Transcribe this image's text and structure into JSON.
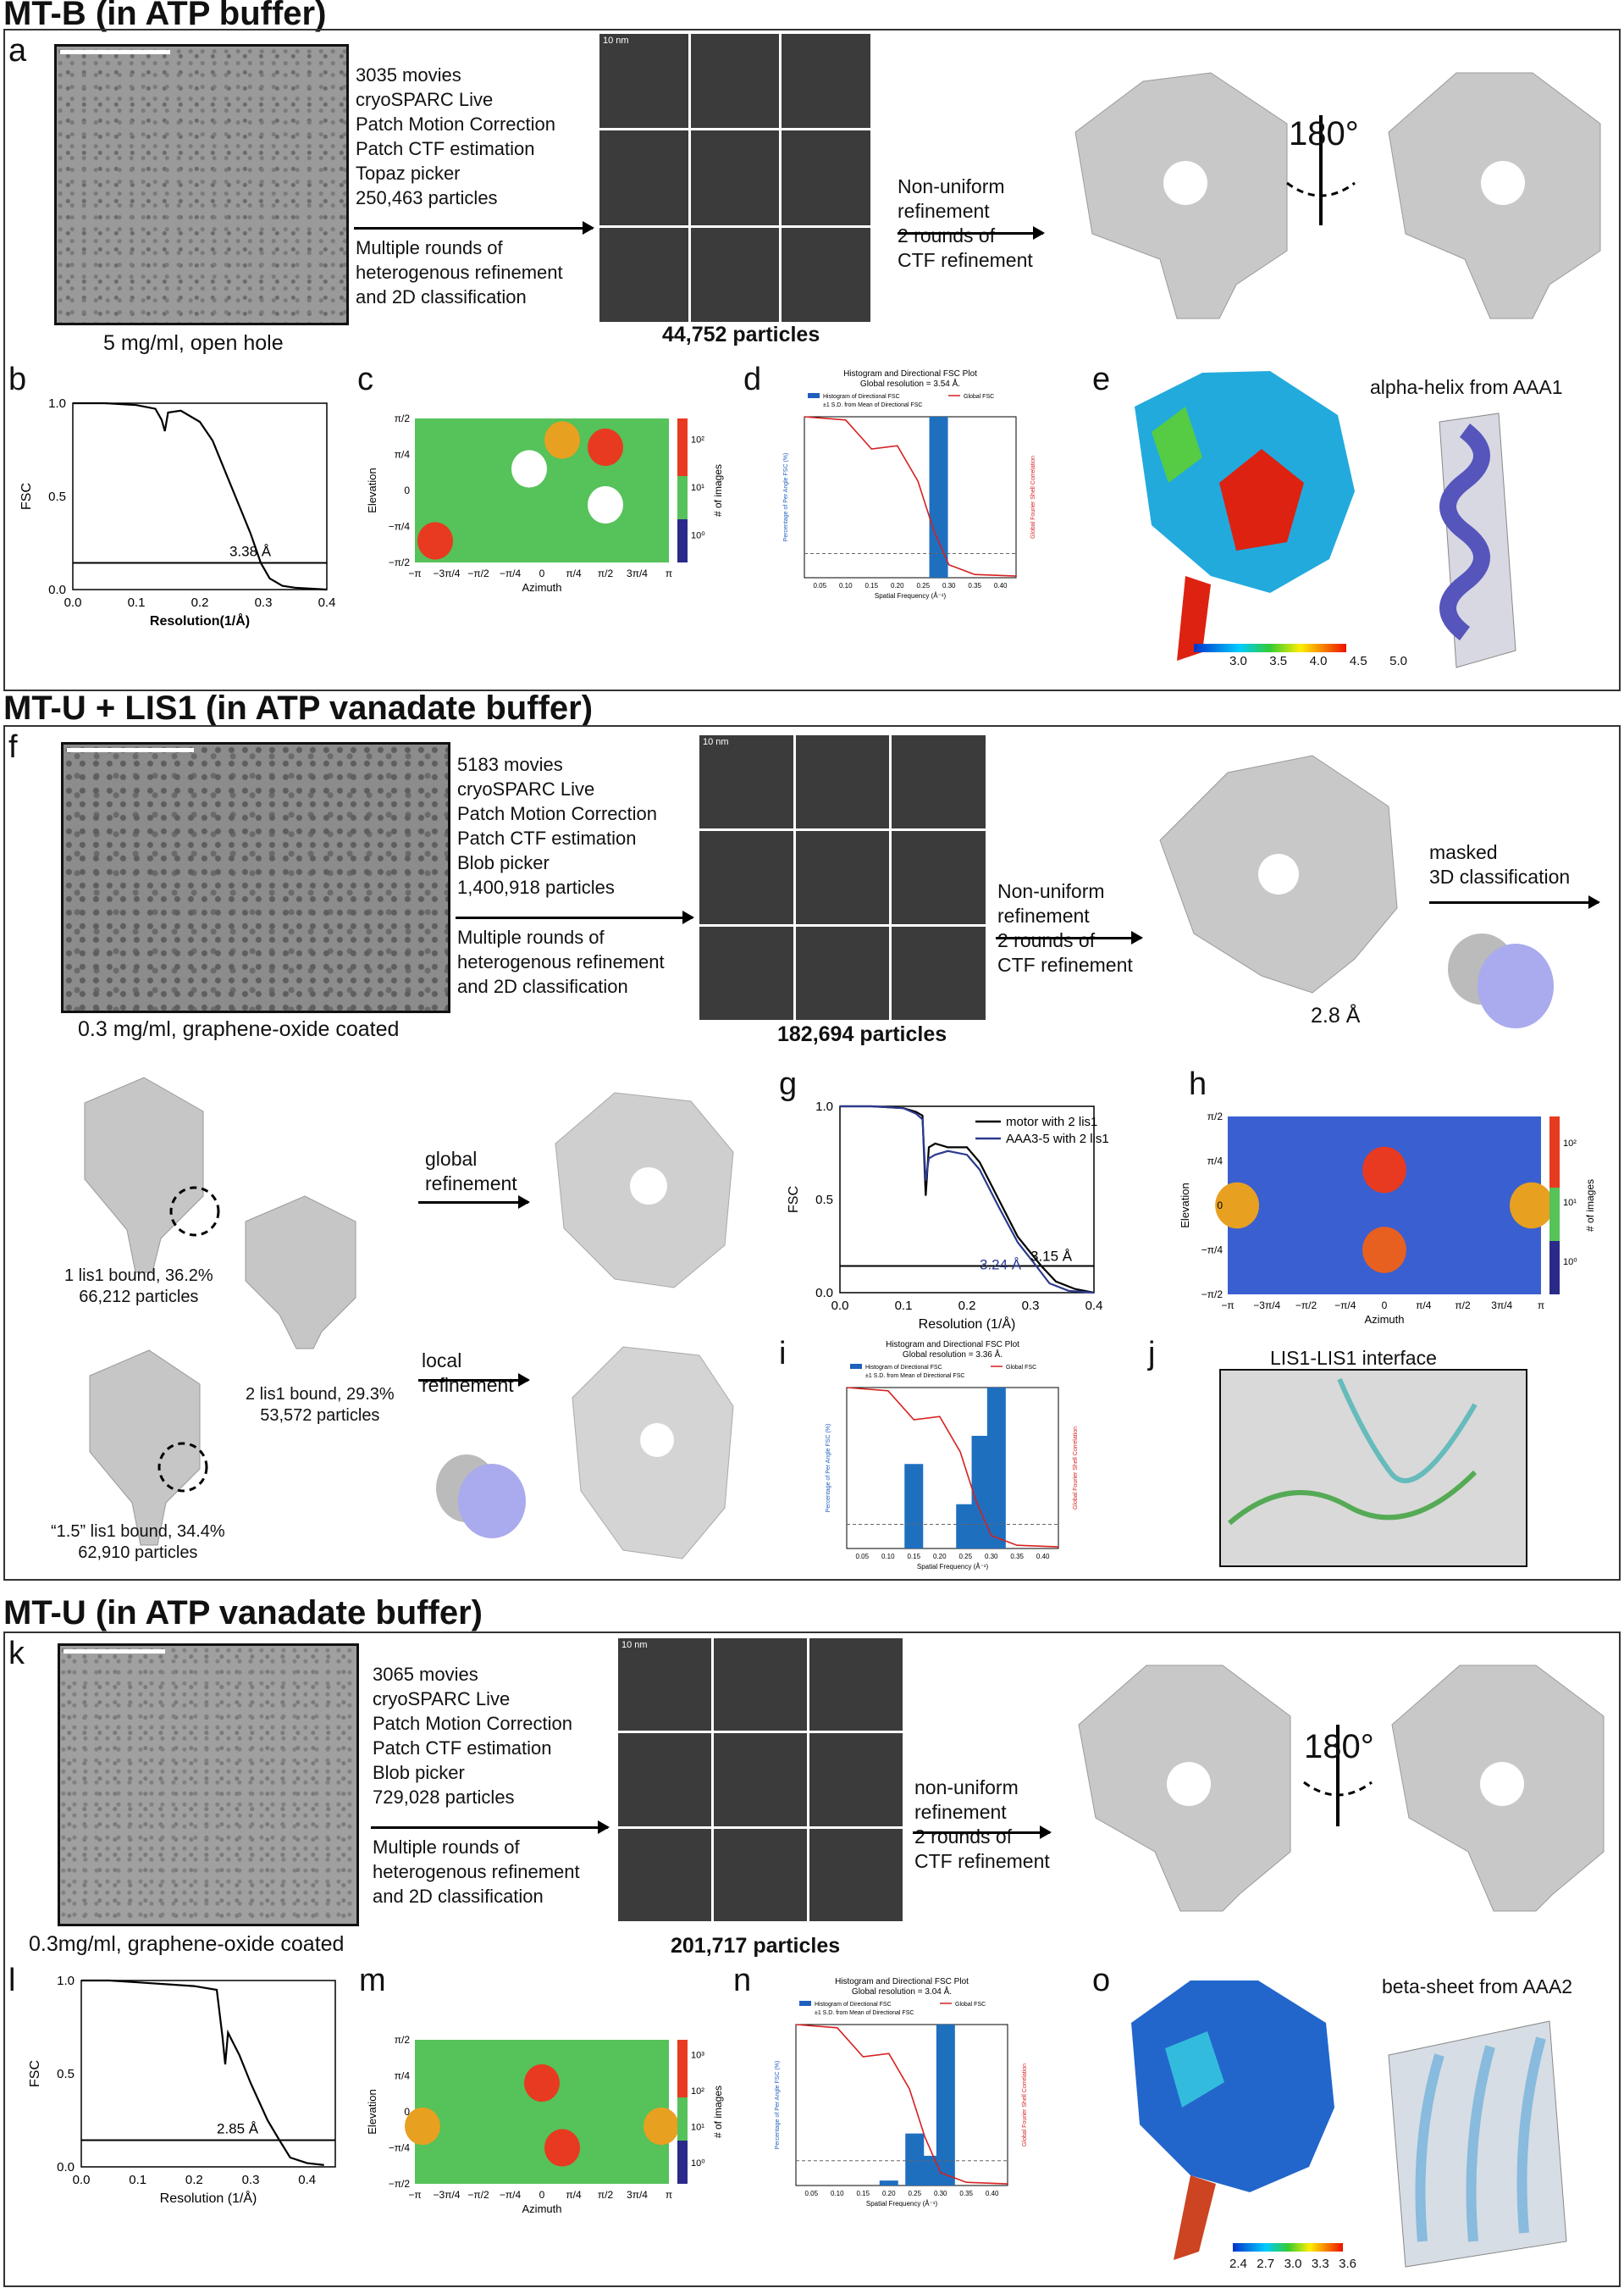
{
  "sections": [
    {
      "title": "MT-B (in ATP buffer)"
    },
    {
      "title": "MT-U + LIS1 (in ATP vanadate buffer)"
    },
    {
      "title": "MT-U (in ATP vanadate buffer)"
    }
  ],
  "labels": {
    "a": "a",
    "b": "b",
    "c": "c",
    "d": "d",
    "e": "e",
    "f": "f",
    "g": "g",
    "h": "h",
    "i": "i",
    "j": "j",
    "k": "k",
    "l": "l",
    "m": "m",
    "n": "n",
    "o": "o"
  },
  "panel_a": {
    "processing": "3035 movies\ncryoSPARC Live\nPatch Motion Correction\nPatch CTF estimation\nTopaz picker\n250,463 particles",
    "refinement": "Multiple rounds of\nheterogenous refinement\nand 2D classification",
    "micrograph_caption": "5 mg/ml, open hole",
    "particles": "44,752 particles",
    "step2": "Non-uniform\nrefinement\n2 rounds of\nCTF refinement",
    "rotation": "180°",
    "scale": "10 nm"
  },
  "panel_e": {
    "title": "alpha-helix from AAA1",
    "colorbar": [
      "3.0",
      "3.5",
      "4.0",
      "4.5",
      "5.0"
    ]
  },
  "panel_f": {
    "processing": "5183 movies\ncryoSPARC Live\nPatch Motion Correction\nPatch CTF estimation\nBlob picker\n1,400,918 particles",
    "refinement": "Multiple rounds of\nheterogenous refinement\nand 2D classification",
    "micrograph_caption": "0.3 mg/ml, graphene-oxide coated",
    "particles": "182,694 particles",
    "step2": "Non-uniform\nrefinement\n2 rounds of\nCTF refinement",
    "step3": "masked\n3D classification",
    "resolution": "2.8 Å",
    "scale": "10 nm",
    "class1": "1 lis1 bound, 36.2%\n66,212 particles",
    "class2": "2 lis1 bound, 29.3%\n53,572 particles",
    "class3": "“1.5” lis1 bound, 34.4%\n62,910 particles",
    "global": "global\nrefinement",
    "local": "local\nrefinement"
  },
  "panel_j": {
    "title": "LIS1-LIS1 interface"
  },
  "panel_k": {
    "processing": "3065 movies\ncryoSPARC Live\nPatch Motion Correction\nPatch CTF estimation\nBlob picker\n729,028 particles",
    "refinement": "Multiple rounds of\nheterogenous refinement\nand 2D classification",
    "micrograph_caption": "0.3mg/ml, graphene-oxide coated",
    "particles": "201,717 particles",
    "step2": "non-uniform\nrefinement\n2 rounds of\nCTF refinement",
    "rotation": "180°",
    "scale": "10 nm"
  },
  "panel_o": {
    "title": "beta-sheet from AAA2",
    "colorbar": [
      "2.4",
      "2.7",
      "3.0",
      "3.3",
      "3.6"
    ]
  },
  "fsc_common": {
    "ylabel": "FSC",
    "xlabel": "Resolution(1/Å)",
    "xlabel_g": "Resolution (1/Å)"
  },
  "viewing": {
    "ylabel": "Elevation",
    "xlabel": "Azimuth",
    "cbar_label": "# of images",
    "xticks": [
      "−π",
      "−3π/4",
      "−π/2",
      "−π/4",
      "0",
      "π/4",
      "π/2",
      "3π/4",
      "π"
    ],
    "yticks": [
      "π/2",
      "π/4",
      "0",
      "−π/4",
      "−π/2"
    ],
    "cticks": [
      "10²",
      "10¹",
      "10⁰"
    ],
    "cticks_m": [
      "10³",
      "10²",
      "10¹",
      "10⁰"
    ]
  },
  "dirfsc": {
    "title": "Histogram and Directional FSC Plot",
    "legend_hist": "Histogram of Directional FSC",
    "legend_sd": "±1 S.D. from Mean of Directional FSC",
    "legend_global": "Global FSC",
    "xlabel": "Spatial Frequency (Å⁻¹)",
    "ylabel_left": "Percentage of Per Angle FSC (%)",
    "ylabel_right": "Global Fourier Shell Correlation",
    "subtitle_d": "Global resolution = 3.54 Å.",
    "subtitle_i": "Global resolution = 3.36 Å.",
    "subtitle_n": "Global resolution = 3.04 Å."
  },
  "chart_data": [
    {
      "id": "b",
      "type": "line",
      "ylabel": "FSC",
      "xlabel": "Resolution(1/Å)",
      "xlim": [
        0,
        0.4
      ],
      "ylim": [
        0,
        1
      ],
      "xticks": [
        "0.0",
        "0.1",
        "0.2",
        "0.3",
        "0.4"
      ],
      "yticks": [
        "0.0",
        "0.5",
        "1.0"
      ],
      "annotation": "3.38 Å",
      "threshold": 0.143,
      "series": [
        {
          "x": [
            0,
            0.05,
            0.1,
            0.13,
            0.14,
            0.145,
            0.15,
            0.17,
            0.2,
            0.22,
            0.25,
            0.28,
            0.296,
            0.31,
            0.33,
            0.35,
            0.4
          ],
          "y": [
            1,
            1,
            0.99,
            0.97,
            0.91,
            0.85,
            0.95,
            0.96,
            0.9,
            0.8,
            0.55,
            0.3,
            0.143,
            0.06,
            0.02,
            0.01,
            0.0
          ]
        }
      ]
    },
    {
      "id": "g",
      "type": "line",
      "ylabel": "FSC",
      "xlabel": "Resolution (1/Å)",
      "xlim": [
        0,
        0.4
      ],
      "ylim": [
        0,
        1
      ],
      "xticks": [
        "0.0",
        "0.1",
        "0.2",
        "0.3",
        "0.4"
      ],
      "yticks": [
        "0.0",
        "0.5",
        "1.0"
      ],
      "annotations": [
        "3.15 Å",
        "3.24 Å"
      ],
      "threshold": 0.143,
      "series": [
        {
          "name": "motor with 2 lis1",
          "color": "#000000",
          "x": [
            0,
            0.05,
            0.1,
            0.12,
            0.13,
            0.135,
            0.14,
            0.15,
            0.17,
            0.2,
            0.22,
            0.25,
            0.28,
            0.317,
            0.34,
            0.37,
            0.4
          ],
          "y": [
            1,
            1,
            0.99,
            0.97,
            0.95,
            0.52,
            0.78,
            0.8,
            0.78,
            0.78,
            0.7,
            0.5,
            0.3,
            0.143,
            0.06,
            0.02,
            0.0
          ]
        },
        {
          "name": "AAA3-5 with 2 lis1",
          "color": "#2b3a8f",
          "x": [
            0,
            0.05,
            0.1,
            0.12,
            0.13,
            0.135,
            0.14,
            0.15,
            0.17,
            0.2,
            0.22,
            0.25,
            0.28,
            0.309,
            0.33,
            0.36,
            0.4
          ],
          "y": [
            1,
            1,
            0.99,
            0.96,
            0.93,
            0.6,
            0.72,
            0.74,
            0.76,
            0.74,
            0.66,
            0.46,
            0.27,
            0.143,
            0.05,
            0.01,
            0.0
          ]
        }
      ]
    },
    {
      "id": "l",
      "type": "line",
      "ylabel": "FSC",
      "xlabel": "Resolution (1/Å)",
      "xlim": [
        0,
        0.45
      ],
      "ylim": [
        0,
        1
      ],
      "xticks": [
        "0.0",
        "0.1",
        "0.2",
        "0.3",
        "0.4"
      ],
      "yticks": [
        "0.0",
        "0.5",
        "1.0"
      ],
      "annotation": "2.85 Å",
      "threshold": 0.143,
      "series": [
        {
          "x": [
            0,
            0.05,
            0.1,
            0.15,
            0.2,
            0.24,
            0.25,
            0.255,
            0.26,
            0.28,
            0.3,
            0.33,
            0.351,
            0.37,
            0.4,
            0.43
          ],
          "y": [
            1,
            1,
            0.99,
            0.98,
            0.97,
            0.95,
            0.7,
            0.55,
            0.72,
            0.6,
            0.45,
            0.25,
            0.143,
            0.05,
            0.02,
            0.01
          ]
        }
      ]
    },
    {
      "id": "d",
      "type": "bar",
      "bars": [
        {
          "x": 0.28,
          "value": 100
        }
      ],
      "xticks": [
        "0.05",
        "0.10",
        "0.15",
        "0.20",
        "0.25",
        "0.30",
        "0.35",
        "0.40"
      ],
      "ylim": [
        0,
        100
      ],
      "sd_line": 15
    },
    {
      "id": "i",
      "type": "bar",
      "bars": [
        {
          "x": 0.15,
          "value": 21
        },
        {
          "x": 0.25,
          "value": 11
        },
        {
          "x": 0.28,
          "value": 28
        },
        {
          "x": 0.31,
          "value": 40
        }
      ],
      "xticks": [
        "0.05",
        "0.10",
        "0.15",
        "0.20",
        "0.25",
        "0.30",
        "0.35",
        "0.40"
      ],
      "ylim": [
        0,
        40
      ],
      "sd_line": 6
    },
    {
      "id": "n",
      "type": "bar",
      "bars": [
        {
          "x": 0.2,
          "value": 2
        },
        {
          "x": 0.25,
          "value": 21
        },
        {
          "x": 0.28,
          "value": 12
        },
        {
          "x": 0.31,
          "value": 65
        }
      ],
      "xticks": [
        "0.05",
        "0.10",
        "0.15",
        "0.20",
        "0.25",
        "0.30",
        "0.35",
        "0.40"
      ],
      "ylim": [
        0,
        65
      ],
      "sd_line": 10
    }
  ]
}
